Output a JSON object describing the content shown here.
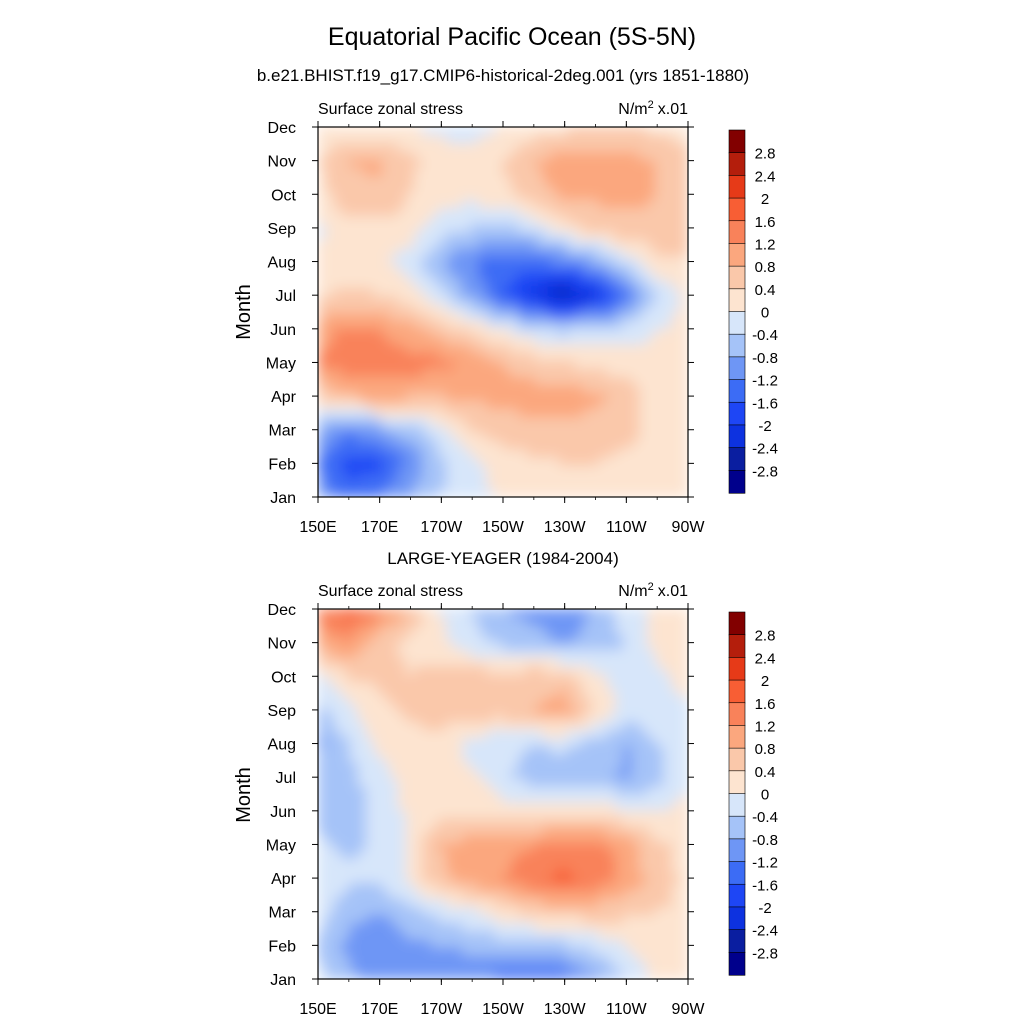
{
  "figure": {
    "title": "Equatorial Pacific Ocean (5S-5N)"
  },
  "panels": [
    {
      "header": "b.e21.BHIST.f19_g17.CMIP6-historical-2deg.001 (yrs 1851-1880)",
      "left_label": "Surface zonal stress",
      "right_label_unit": "N/m",
      "right_label_exp": "2",
      "right_label_scale": "x.01"
    },
    {
      "header": "LARGE-YEAGER (1984-2004)",
      "left_label": "Surface zonal stress",
      "right_label_unit": "N/m",
      "right_label_exp": "2",
      "right_label_scale": "x.01"
    }
  ],
  "chart_data": [
    {
      "type": "heatmap",
      "title": "b.e21.BHIST.f19_g17.CMIP6-historical-2deg.001 (yrs 1851-1880)",
      "xlabel": "",
      "ylabel": "Month",
      "x": [
        "150E",
        "160E",
        "170E",
        "180",
        "170W",
        "160W",
        "150W",
        "140W",
        "130W",
        "120W",
        "110W",
        "100W",
        "90W"
      ],
      "y": [
        "Jan",
        "Feb",
        "Mar",
        "Apr",
        "May",
        "Jun",
        "Jul",
        "Aug",
        "Sep",
        "Oct",
        "Nov",
        "Dec"
      ],
      "x_tick_labels": [
        "150E",
        "170E",
        "170W",
        "150W",
        "130W",
        "110W",
        "90W"
      ],
      "colorbar_levels": [
        "2.8",
        "2.4",
        "2",
        "1.6",
        "1.2",
        "0.8",
        "0.4",
        "0",
        "-0.4",
        "-0.8",
        "-1.2",
        "-1.6",
        "-2",
        "-2.4",
        "-2.8"
      ],
      "z": [
        [
          -1.0,
          -1.4,
          -1.2,
          -0.8,
          -0.4,
          -0.1,
          0.0,
          0.2,
          0.1,
          0.1,
          0.1,
          0.1,
          0.1
        ],
        [
          -1.2,
          -1.8,
          -1.7,
          -1.1,
          -0.5,
          -0.1,
          0.2,
          0.3,
          0.4,
          0.4,
          0.3,
          0.2,
          0.2
        ],
        [
          -0.7,
          -1.1,
          -0.9,
          -0.6,
          -0.2,
          0.4,
          0.6,
          0.7,
          0.7,
          0.6,
          0.5,
          0.3,
          0.2
        ],
        [
          0.4,
          0.8,
          0.9,
          0.8,
          0.8,
          0.9,
          0.9,
          1.0,
          1.0,
          0.9,
          0.6,
          0.2,
          0.1
        ],
        [
          1.3,
          1.4,
          1.4,
          1.4,
          1.3,
          1.1,
          0.8,
          0.6,
          0.4,
          0.3,
          0.2,
          0.1,
          0.1
        ],
        [
          1.0,
          1.3,
          1.2,
          0.9,
          0.6,
          0.3,
          0.0,
          -0.3,
          -0.5,
          -0.4,
          -0.2,
          0.0,
          0.1
        ],
        [
          0.3,
          0.5,
          0.4,
          0.2,
          -0.3,
          -0.9,
          -1.6,
          -2.2,
          -2.6,
          -2.2,
          -1.4,
          -0.4,
          0.1
        ],
        [
          0.1,
          0.2,
          0.1,
          -0.2,
          -0.8,
          -1.2,
          -1.4,
          -1.4,
          -1.2,
          -0.8,
          -0.3,
          0.3,
          0.4
        ],
        [
          -0.1,
          0.3,
          0.3,
          0.2,
          -0.2,
          -0.4,
          -0.5,
          -0.3,
          0.2,
          0.5,
          0.7,
          0.7,
          0.6
        ],
        [
          0.2,
          0.7,
          0.7,
          0.4,
          0.2,
          0.1,
          0.3,
          0.6,
          0.9,
          0.9,
          0.9,
          0.8,
          0.6
        ],
        [
          0.4,
          0.8,
          0.9,
          0.5,
          0.2,
          0.1,
          0.4,
          0.8,
          1.0,
          1.0,
          1.0,
          0.8,
          0.5
        ],
        [
          0.1,
          0.1,
          0.1,
          0.0,
          -0.1,
          -0.1,
          0.0,
          0.2,
          0.3,
          0.4,
          0.4,
          0.3,
          0.2
        ]
      ]
    },
    {
      "type": "heatmap",
      "title": "LARGE-YEAGER (1984-2004)",
      "xlabel": "",
      "ylabel": "Month",
      "x": [
        "150E",
        "160E",
        "170E",
        "180",
        "170W",
        "160W",
        "150W",
        "140W",
        "130W",
        "120W",
        "110W",
        "100W",
        "90W"
      ],
      "y": [
        "Jan",
        "Feb",
        "Mar",
        "Apr",
        "May",
        "Jun",
        "Jul",
        "Aug",
        "Sep",
        "Oct",
        "Nov",
        "Dec"
      ],
      "x_tick_labels": [
        "150E",
        "170E",
        "170W",
        "150W",
        "130W",
        "110W",
        "90W"
      ],
      "colorbar_levels": [
        "2.8",
        "2.4",
        "2",
        "1.6",
        "1.2",
        "0.8",
        "0.4",
        "0",
        "-0.4",
        "-0.8",
        "-1.2",
        "-1.6",
        "-2",
        "-2.4",
        "-2.8"
      ],
      "z": [
        [
          -0.3,
          -0.7,
          -0.9,
          -1.0,
          -1.1,
          -1.2,
          -1.3,
          -1.4,
          -1.3,
          -0.9,
          -0.4,
          0.1,
          0.2
        ],
        [
          -0.4,
          -0.9,
          -1.1,
          -0.9,
          -0.8,
          -0.7,
          -0.6,
          -0.6,
          -0.5,
          -0.3,
          0.0,
          0.2,
          0.3
        ],
        [
          -0.2,
          -0.7,
          -0.8,
          -0.5,
          -0.3,
          -0.1,
          0.2,
          0.5,
          0.6,
          0.6,
          0.5,
          0.4,
          0.3
        ],
        [
          -0.2,
          -0.3,
          -0.3,
          0.1,
          0.7,
          1.0,
          1.2,
          1.5,
          1.7,
          1.5,
          1.1,
          0.6,
          0.3
        ],
        [
          -0.3,
          -0.5,
          -0.3,
          0.1,
          0.8,
          1.0,
          1.0,
          1.2,
          1.3,
          1.4,
          1.0,
          0.5,
          0.2
        ],
        [
          -0.5,
          -0.6,
          -0.3,
          0.1,
          0.3,
          0.3,
          0.2,
          0.2,
          0.2,
          0.2,
          0.1,
          0.0,
          0.1
        ],
        [
          -0.6,
          -0.5,
          -0.2,
          0.2,
          0.2,
          0.1,
          -0.3,
          -0.6,
          -0.6,
          -0.5,
          -0.9,
          -0.6,
          0.0
        ],
        [
          -0.9,
          -0.4,
          0.1,
          0.2,
          0.2,
          -0.2,
          -0.3,
          -0.4,
          -0.3,
          -0.6,
          -0.8,
          -0.4,
          -0.1
        ],
        [
          -0.5,
          -0.1,
          0.3,
          0.5,
          0.7,
          0.6,
          0.6,
          0.8,
          1.0,
          0.4,
          -0.2,
          -0.2,
          -0.1
        ],
        [
          -0.1,
          0.4,
          0.5,
          0.4,
          0.6,
          0.7,
          0.5,
          0.7,
          0.6,
          0.1,
          -0.2,
          -0.1,
          0.2
        ],
        [
          1.0,
          1.1,
          0.6,
          0.3,
          0.1,
          -0.3,
          -0.5,
          -0.6,
          -0.8,
          -0.6,
          -0.4,
          0.1,
          0.4
        ],
        [
          1.4,
          1.8,
          1.3,
          0.8,
          0.0,
          -0.4,
          -0.8,
          -1.0,
          -1.2,
          -0.7,
          -0.2,
          0.1,
          0.2
        ]
      ]
    }
  ],
  "colormap": {
    "levels": [
      -2.8,
      -2.4,
      -2.0,
      -1.6,
      -1.2,
      -0.8,
      -0.4,
      0.0,
      0.4,
      0.8,
      1.2,
      1.6,
      2.0,
      2.4,
      2.8
    ],
    "colors": [
      "#00008c",
      "#0a1ea0",
      "#0d32e0",
      "#1e46f5",
      "#3c6cf5",
      "#6e96f5",
      "#a5c3f8",
      "#d7e6fa",
      "#fde4d0",
      "#fac8aa",
      "#fba77e",
      "#f9825a",
      "#f85e34",
      "#e63a18",
      "#b41e0c",
      "#820000"
    ]
  }
}
